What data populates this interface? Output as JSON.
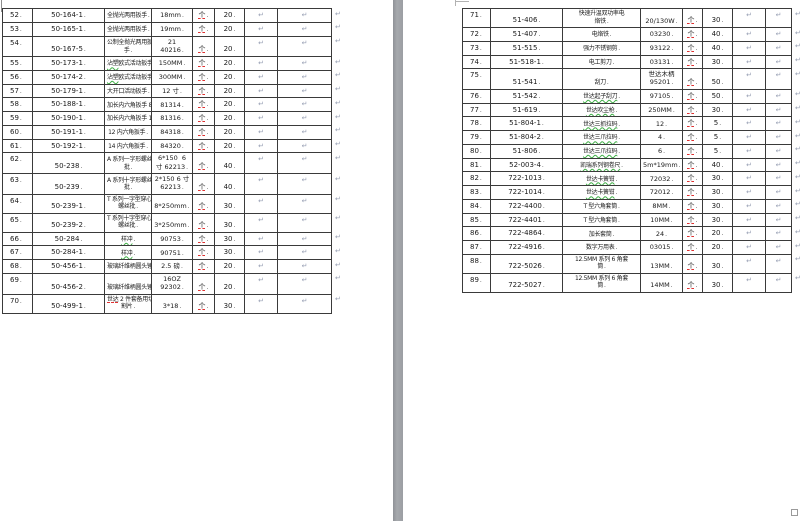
{
  "marks": {
    "line_break": "↵",
    "cell_end": ".",
    "page_end": "¤"
  },
  "colors": {
    "border": "#3a3a3a",
    "pilcrow": "#98a0b4",
    "spell_red": "#e03131",
    "grammar_green": "#3faf46",
    "page_gap": "#9b9ea3"
  },
  "unit_label": "个",
  "pages": [
    {
      "side": "left",
      "rows": [
        {
          "no": "52",
          "code": "50-164-1",
          "name": "全抛光两用扳手",
          "spec": "18mm",
          "unit": "个",
          "qty": "20"
        },
        {
          "no": "53",
          "code": "50-165-1",
          "name": "全抛光两用扳手",
          "spec": "19mm",
          "unit": "个",
          "qty": "20"
        },
        {
          "no": "54",
          "code": "50-167-5",
          "name": "公制全抛光两用扳\n手",
          "spec": "21\n40216",
          "unit": "个",
          "qty": "20"
        },
        {
          "no": "55",
          "code": "50-173-1",
          "name": "沾塑欧式活动扳手",
          "spec": "150MM",
          "unit": "个",
          "qty": "20",
          "underline": {
            "text": "沾塑",
            "color": "green"
          }
        },
        {
          "no": "56",
          "code": "50-174-2",
          "name": "沾塑欧式活动扳手",
          "spec": "300MM",
          "unit": "个",
          "qty": "20",
          "underline": {
            "text": "沾塑",
            "color": "green"
          }
        },
        {
          "no": "57",
          "code": "50-179-1",
          "name": "大开口活动扳手",
          "spec": "12 寸",
          "unit": "个",
          "qty": "20"
        },
        {
          "no": "58",
          "code": "50-188-1",
          "name": "加长内六角扳手 8",
          "spec": "81314",
          "unit": "个",
          "qty": "20"
        },
        {
          "no": "59",
          "code": "50-190-1",
          "name": "加长内六角扳手 10",
          "spec": "81316",
          "unit": "个",
          "qty": "20"
        },
        {
          "no": "60",
          "code": "50-191-1",
          "name": "12 内六角扳手",
          "spec": "84318",
          "unit": "个",
          "qty": "20"
        },
        {
          "no": "61",
          "code": "50-192-1",
          "name": "14 内六角扳手",
          "spec": "84320",
          "unit": "个",
          "qty": "20"
        },
        {
          "no": "62",
          "code": "50-238",
          "name": "A 系列一字形螺丝\n批",
          "spec": "6*150  6\n寸 62213",
          "unit": "个",
          "qty": "40"
        },
        {
          "no": "63",
          "code": "50-239",
          "name": "A 系列十字形螺丝\n批",
          "spec": "2*150 6 寸\n62213",
          "unit": "个",
          "qty": "40"
        },
        {
          "no": "64",
          "code": "50-239-1",
          "name": "T 系列一字型穿心\n螺丝批",
          "spec": "8*250mm",
          "unit": "个",
          "qty": "30"
        },
        {
          "no": "65",
          "code": "50-239-2",
          "name": "T 系列十字型穿心\n螺丝批",
          "spec": "3*250mm",
          "unit": "个",
          "qty": "30"
        },
        {
          "no": "66",
          "code": "50-284",
          "name": "样冲",
          "spec": "90753",
          "unit": "个",
          "qty": "30",
          "underline": {
            "text": "样冲",
            "color": "green"
          }
        },
        {
          "no": "67",
          "code": "50-284-1",
          "name": "样冲",
          "spec": "90751",
          "unit": "个",
          "qty": "30",
          "underline": {
            "text": "样冲",
            "color": "green"
          }
        },
        {
          "no": "68",
          "code": "50-456-1",
          "name": "玻璃纤维柄圆头锤",
          "spec": "2.5 磅",
          "unit": "个",
          "qty": "20"
        },
        {
          "no": "69",
          "code": "50-456-2",
          "name": "玻璃纤维柄圆头锤",
          "spec": "16OZ\n92302",
          "unit": "个",
          "qty": "20"
        },
        {
          "no": "70",
          "code": "50-499-1",
          "name": "世达 2 件套备用切\n割片",
          "spec": "3*18",
          "unit": "个",
          "qty": "30",
          "underline": {
            "text": "世达",
            "color": "red"
          }
        }
      ]
    },
    {
      "side": "right",
      "rows": [
        {
          "no": "71",
          "code": "51-406",
          "name": "快速升温双功率电\n烙铁",
          "spec": "20/130W",
          "unit": "个",
          "qty": "30"
        },
        {
          "no": "72",
          "code": "51-407",
          "name": "电烙铁",
          "spec": "03230",
          "unit": "个",
          "qty": "40"
        },
        {
          "no": "73",
          "code": "51-515",
          "name": "强力不锈钢剪",
          "spec": "93122",
          "unit": "个",
          "qty": "40"
        },
        {
          "no": "74",
          "code": "51-518-1",
          "name": "电工剪刀",
          "spec": "03131",
          "unit": "个",
          "qty": "30"
        },
        {
          "no": "75",
          "code": "51-541",
          "name": "刮刀",
          "spec": "世达木柄\n95201",
          "unit": "个",
          "qty": "50"
        },
        {
          "no": "76",
          "code": "51-542",
          "name": "世达起子刮刀",
          "spec": "97105",
          "unit": "个",
          "qty": "50",
          "underline": {
            "text": "世达起子刮刀",
            "color": "green"
          }
        },
        {
          "no": "77",
          "code": "51-619",
          "name": "世达吹尘枪",
          "spec": "250MM",
          "unit": "个",
          "qty": "30",
          "underline": {
            "text": "世达吹尘枪",
            "color": "green"
          }
        },
        {
          "no": "78",
          "code": "51-804-1",
          "name": "世达三抓拉码",
          "spec": "12",
          "unit": "个",
          "qty": "5",
          "underline": {
            "text": "世达三抓拉码",
            "color": "green"
          }
        },
        {
          "no": "79",
          "code": "51-804-2",
          "name": "世达三爪拉码",
          "spec": "4",
          "unit": "个",
          "qty": "5",
          "underline": {
            "text": "世达三爪拉码",
            "color": "green"
          }
        },
        {
          "no": "80",
          "code": "51-806",
          "name": "世达三爪拉码",
          "spec": "6",
          "unit": "个",
          "qty": "5",
          "underline": {
            "text": "世达三爪拉码",
            "color": "green"
          }
        },
        {
          "no": "81",
          "code": "52-003-4",
          "name": "凯瑞系列钢卷尺",
          "spec": "5m*19mm",
          "unit": "个",
          "qty": "40",
          "underline": {
            "text": "凯瑞系列钢卷尺",
            "color": "green"
          }
        },
        {
          "no": "82",
          "code": "722-1013",
          "name": "世达卡簧钳",
          "spec": "72032",
          "unit": "个",
          "qty": "30",
          "underline": {
            "text": "世达卡簧钳",
            "color": "green"
          }
        },
        {
          "no": "83",
          "code": "722-1014",
          "name": "世达卡簧钳",
          "spec": "72012",
          "unit": "个",
          "qty": "30",
          "underline": {
            "text": "世达卡簧钳",
            "color": "green"
          }
        },
        {
          "no": "84",
          "code": "722-4400",
          "name": "T 型六角套筒",
          "spec": "8MM",
          "unit": "个",
          "qty": "30"
        },
        {
          "no": "85",
          "code": "722-4401",
          "name": "T 型六角套筒",
          "spec": "10MM",
          "unit": "个",
          "qty": "30"
        },
        {
          "no": "86",
          "code": "722-4864",
          "name": "加长套筒",
          "spec": "24",
          "unit": "个",
          "qty": "20"
        },
        {
          "no": "87",
          "code": "722-4916",
          "name": "数字万用表",
          "spec": "03015",
          "unit": "个",
          "qty": "20"
        },
        {
          "no": "88",
          "code": "722-5026",
          "name": "12.5MM 系列 6 角套\n筒",
          "spec": "13MM",
          "unit": "个",
          "qty": "30"
        },
        {
          "no": "89",
          "code": "722-5027",
          "name": "12.5MM 系列 6 角套\n筒",
          "spec": "14MM",
          "unit": "个",
          "qty": "30"
        }
      ]
    }
  ]
}
